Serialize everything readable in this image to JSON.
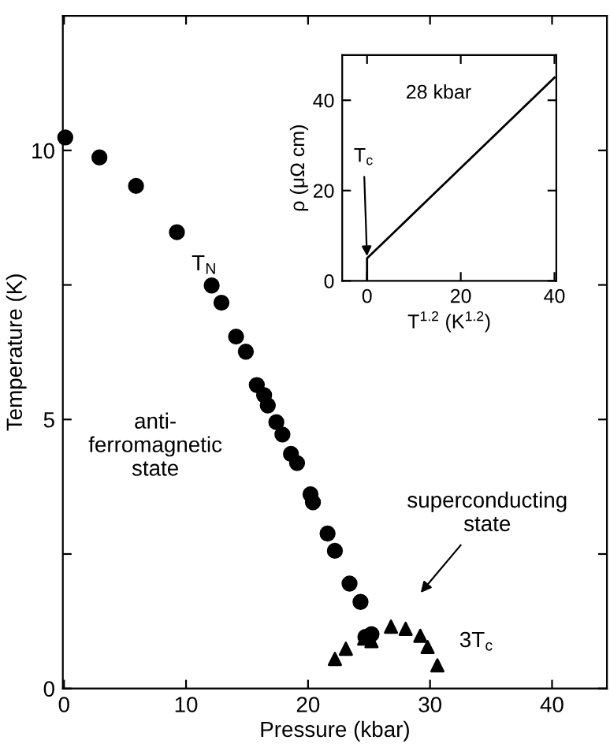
{
  "chart_data": [
    {
      "type": "scatter",
      "xlabel": "Pressure (kbar)",
      "ylabel": "Temperature (K)",
      "xlim": [
        -0.1,
        44.5
      ],
      "ylim": [
        0,
        12.5
      ],
      "xticks": [
        0,
        10,
        20,
        30,
        40
      ],
      "yticks": [
        0,
        {
          "value": 2.5,
          "label": null
        },
        5,
        {
          "value": 7.5,
          "label": null
        },
        10
      ],
      "grid": false,
      "legend": false,
      "series": [
        {
          "name": "T$_{N}$",
          "color": "#000000",
          "marker": "circle",
          "x": [
            0.1,
            2.9,
            5.9,
            9.25,
            12.1,
            12.9,
            14.1,
            14.9,
            15.8,
            16.4,
            16.7,
            17.4,
            17.9,
            18.6,
            19.1,
            20.2,
            20.4,
            21.6,
            22.2,
            23.4,
            24.3,
            24.7,
            25.2
          ],
          "values": [
            10.24,
            9.87,
            9.34,
            8.48,
            7.49,
            7.17,
            6.54,
            6.26,
            5.64,
            5.45,
            5.26,
            4.95,
            4.72,
            4.36,
            4.19,
            3.61,
            3.46,
            2.88,
            2.56,
            1.95,
            1.61,
            0.96,
            1.01
          ]
        },
        {
          "name": "3T$_{c}$",
          "color": "#000000",
          "marker": "triangle",
          "x": [
            22.2,
            23.1,
            24.6,
            25.2,
            26.8,
            28.0,
            29.2,
            29.8,
            30.6
          ],
          "values": [
            0.55,
            0.74,
            0.93,
            0.88,
            1.15,
            1.11,
            0.98,
            0.77,
            0.43
          ]
        }
      ],
      "annotations": [
        "anti-\nferromagnetic\nstate",
        "superconducting\nstate"
      ]
    },
    {
      "type": "line",
      "xlabel": "T$^{1.2}$ (K$^{1.2}$)",
      "ylabel": "ρ (μΩ cm)",
      "xlim": [
        -5.3,
        40.4
      ],
      "ylim": [
        0,
        50
      ],
      "xticks": [
        0,
        20,
        40
      ],
      "yticks": [
        0,
        20,
        40
      ],
      "grid": false,
      "legend": false,
      "series": [
        {
          "color": "#000000",
          "x": [
            0,
            0,
            40
          ],
          "values": [
            0,
            5,
            45
          ]
        }
      ],
      "annotations": [
        "28 kbar",
        {
          "text": "T$_{c}$",
          "x": 0,
          "y": 5
        }
      ]
    }
  ]
}
